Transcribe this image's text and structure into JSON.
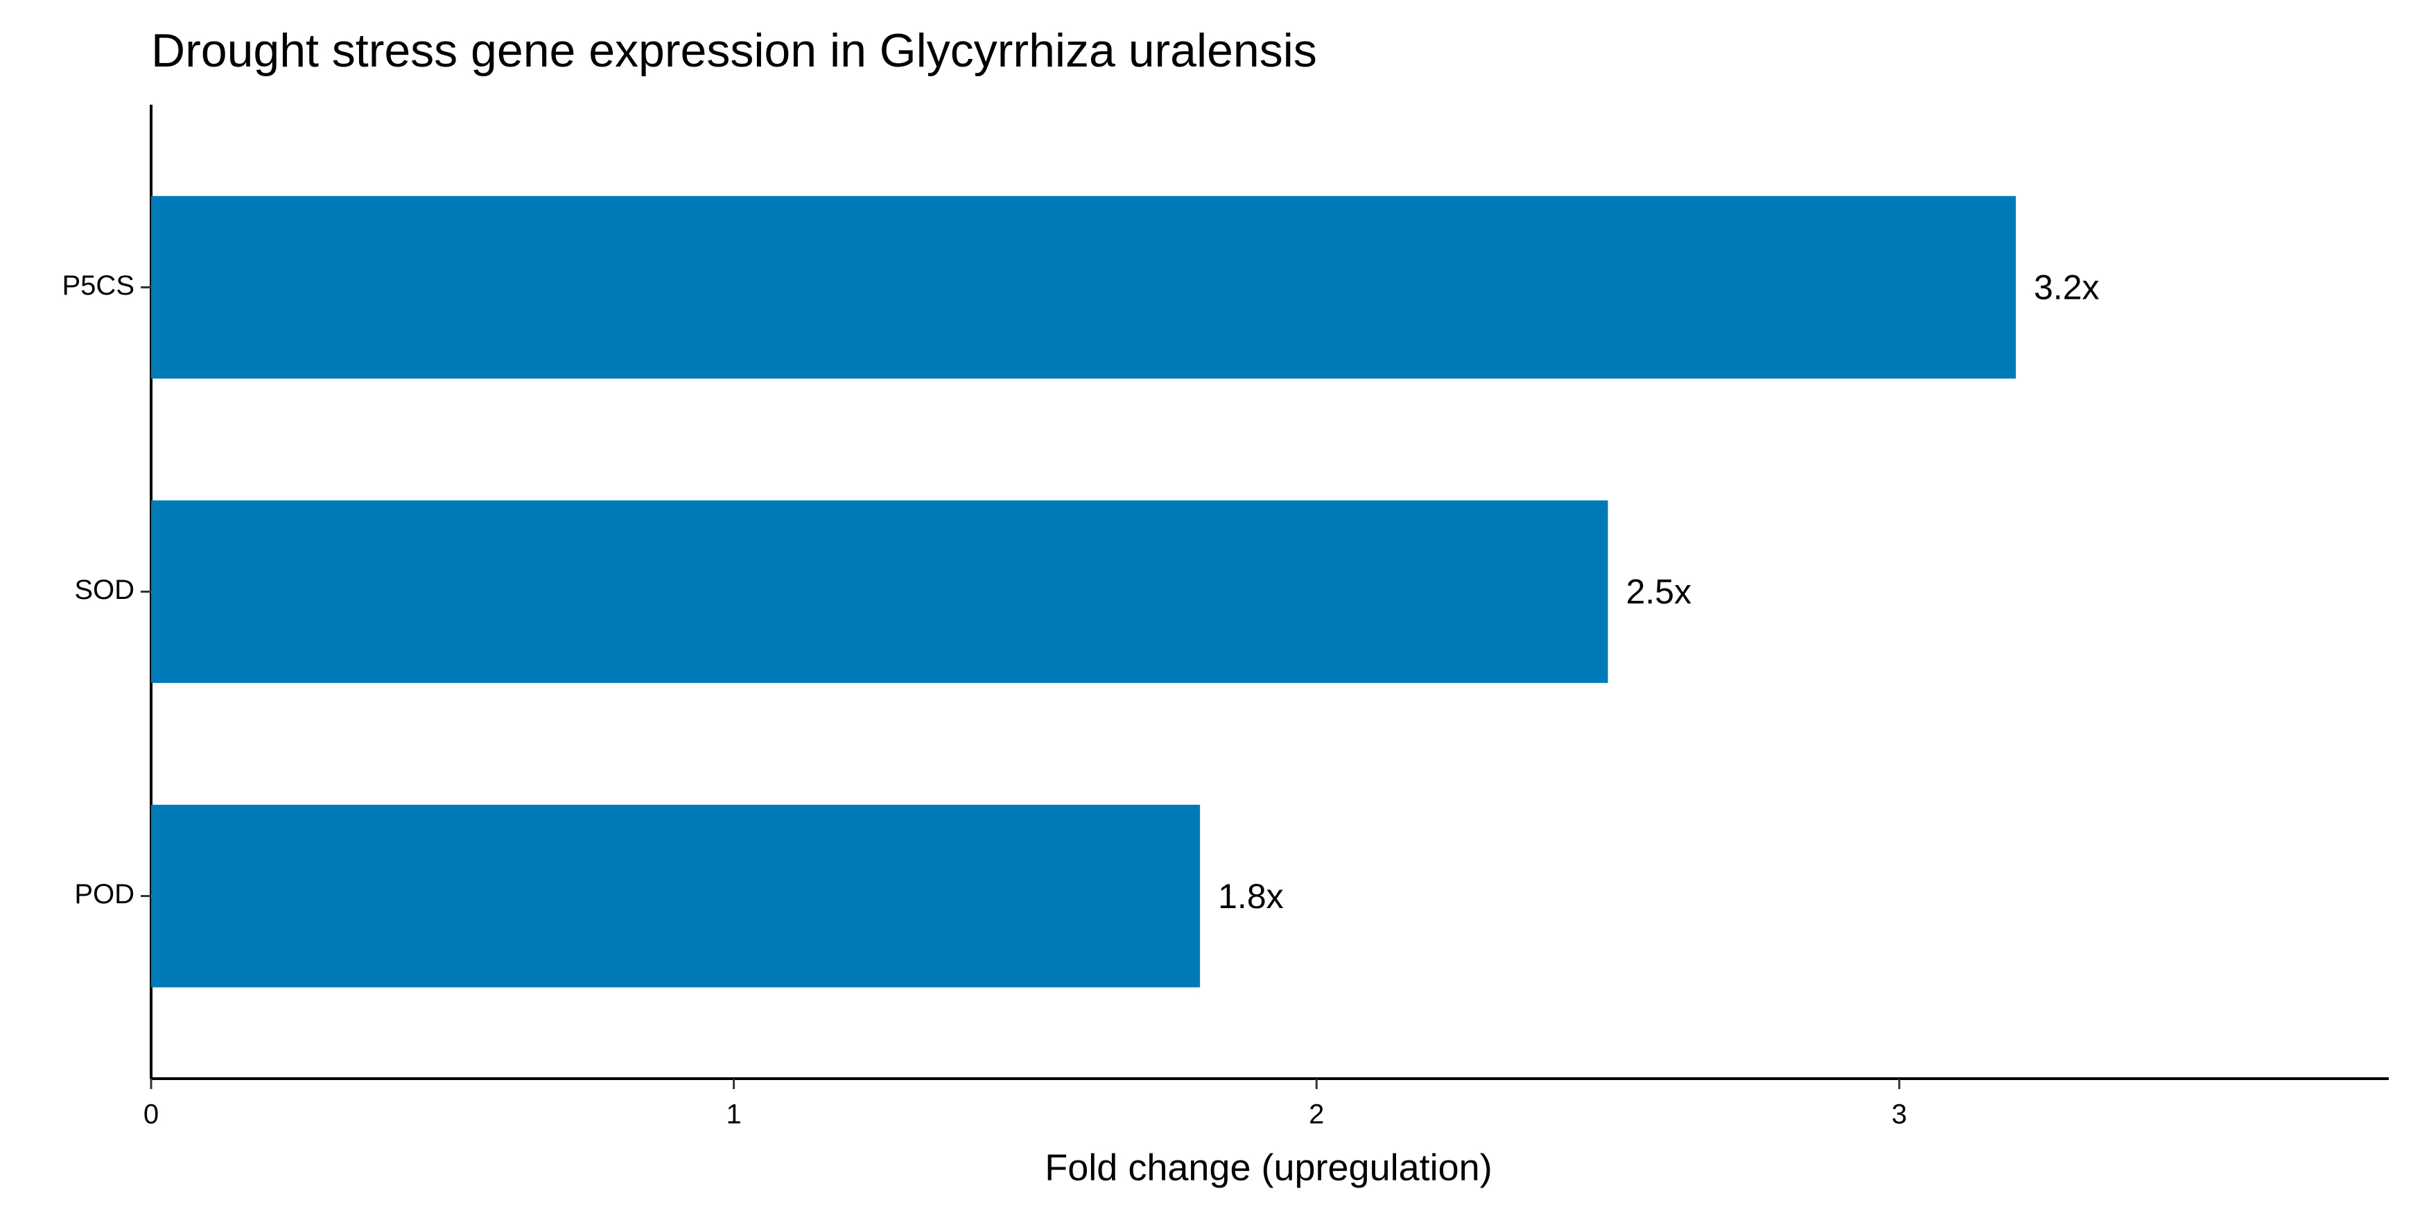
{
  "chart_data": {
    "type": "bar",
    "orientation": "horizontal",
    "title": "Drought stress gene expression in Glycyrrhiza uralensis",
    "x_label": "Fold change (upregulation)",
    "categories": [
      "P5CS",
      "SOD",
      "POD"
    ],
    "values": [
      3.2,
      2.5,
      1.8
    ],
    "value_labels": [
      "3.2x",
      "2.5x",
      "1.8x"
    ],
    "color": "#007bb8",
    "xlim": [
      0,
      3.84
    ],
    "xticks": [
      0,
      1,
      2,
      3
    ],
    "grid": false
  }
}
